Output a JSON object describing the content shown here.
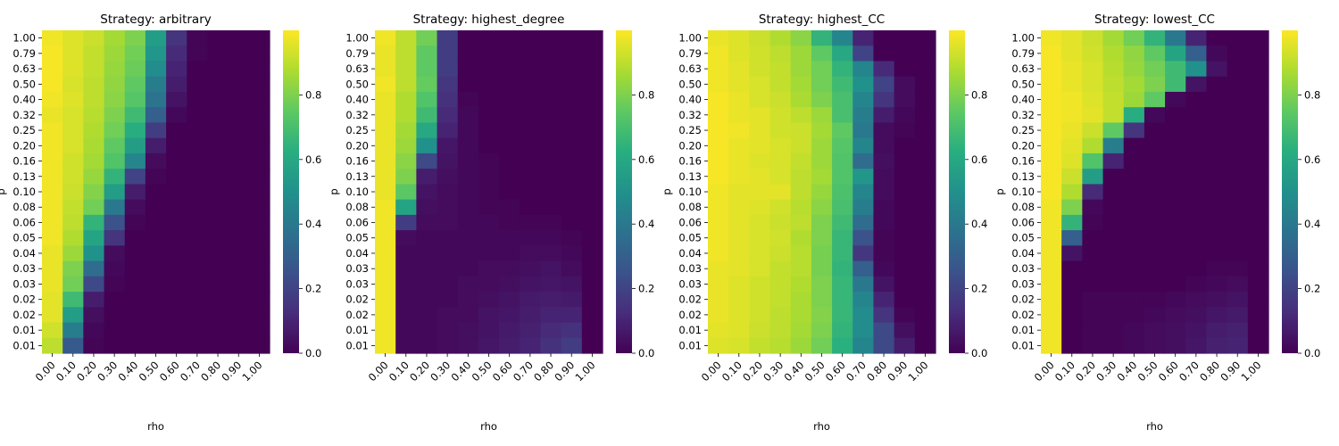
{
  "chart_data": {
    "type": "heatmap",
    "xlabel": "rho",
    "ylabel": "p",
    "x_tick_labels": [
      "0.00",
      "0.10",
      "0.20",
      "0.30",
      "0.40",
      "0.50",
      "0.60",
      "0.70",
      "0.80",
      "0.90",
      "1.00"
    ],
    "y_tick_labels": [
      "1.00",
      "0.79",
      "0.63",
      "0.50",
      "0.40",
      "0.32",
      "0.25",
      "0.20",
      "0.16",
      "0.13",
      "0.10",
      "0.08",
      "0.06",
      "0.05",
      "0.04",
      "0.03",
      "0.03",
      "0.02",
      "0.02",
      "0.01",
      "0.01"
    ],
    "colorbar": {
      "colormap": "viridis",
      "min": 0.0,
      "max": 1.0,
      "tick_values": [
        0.0,
        0.2,
        0.4,
        0.6,
        0.8
      ],
      "tick_labels": [
        "0.0",
        "0.2",
        "0.4",
        "0.6",
        "0.8"
      ]
    },
    "panels": [
      {
        "title": "Strategy: arbitrary",
        "matrix": [
          [
            0.98,
            0.95,
            0.92,
            0.86,
            0.8,
            0.55,
            0.15,
            0.01,
            0.0,
            0.0,
            0.0
          ],
          [
            0.99,
            0.95,
            0.91,
            0.85,
            0.78,
            0.52,
            0.12,
            0.01,
            0.0,
            0.0,
            0.0
          ],
          [
            0.99,
            0.95,
            0.91,
            0.84,
            0.77,
            0.48,
            0.1,
            0.0,
            0.0,
            0.0,
            0.0
          ],
          [
            0.99,
            0.94,
            0.9,
            0.83,
            0.75,
            0.42,
            0.08,
            0.0,
            0.0,
            0.0,
            0.0
          ],
          [
            0.98,
            0.95,
            0.9,
            0.82,
            0.73,
            0.38,
            0.05,
            0.0,
            0.0,
            0.0,
            0.0
          ],
          [
            0.97,
            0.94,
            0.89,
            0.8,
            0.68,
            0.3,
            0.02,
            0.0,
            0.0,
            0.0,
            0.0
          ],
          [
            0.98,
            0.94,
            0.88,
            0.78,
            0.62,
            0.18,
            0.0,
            0.0,
            0.0,
            0.0,
            0.0
          ],
          [
            0.98,
            0.94,
            0.87,
            0.75,
            0.55,
            0.08,
            0.0,
            0.0,
            0.0,
            0.0,
            0.0
          ],
          [
            0.98,
            0.93,
            0.86,
            0.72,
            0.45,
            0.03,
            0.0,
            0.0,
            0.0,
            0.0,
            0.0
          ],
          [
            0.98,
            0.93,
            0.84,
            0.65,
            0.2,
            0.01,
            0.0,
            0.0,
            0.0,
            0.0,
            0.0
          ],
          [
            0.98,
            0.92,
            0.81,
            0.55,
            0.08,
            0.0,
            0.0,
            0.0,
            0.0,
            0.0,
            0.0
          ],
          [
            0.98,
            0.91,
            0.78,
            0.4,
            0.03,
            0.0,
            0.0,
            0.0,
            0.0,
            0.0,
            0.0
          ],
          [
            0.98,
            0.9,
            0.65,
            0.25,
            0.01,
            0.0,
            0.0,
            0.0,
            0.0,
            0.0,
            0.0
          ],
          [
            0.98,
            0.88,
            0.58,
            0.15,
            0.0,
            0.0,
            0.0,
            0.0,
            0.0,
            0.0,
            0.0
          ],
          [
            0.97,
            0.85,
            0.5,
            0.03,
            0.0,
            0.0,
            0.0,
            0.0,
            0.0,
            0.0,
            0.0
          ],
          [
            0.97,
            0.8,
            0.35,
            0.02,
            0.0,
            0.0,
            0.0,
            0.0,
            0.0,
            0.0,
            0.0
          ],
          [
            0.97,
            0.78,
            0.22,
            0.01,
            0.0,
            0.0,
            0.0,
            0.0,
            0.0,
            0.0,
            0.0
          ],
          [
            0.96,
            0.68,
            0.08,
            0.0,
            0.0,
            0.0,
            0.0,
            0.0,
            0.0,
            0.0,
            0.0
          ],
          [
            0.96,
            0.55,
            0.04,
            0.0,
            0.0,
            0.0,
            0.0,
            0.0,
            0.0,
            0.0,
            0.0
          ],
          [
            0.93,
            0.42,
            0.02,
            0.0,
            0.0,
            0.0,
            0.0,
            0.0,
            0.0,
            0.0,
            0.0
          ],
          [
            0.9,
            0.28,
            0.01,
            0.0,
            0.0,
            0.0,
            0.0,
            0.0,
            0.0,
            0.0,
            0.0
          ]
        ]
      },
      {
        "title": "Strategy: highest_degree",
        "matrix": [
          [
            0.98,
            0.9,
            0.78,
            0.18,
            0.0,
            0.0,
            0.0,
            0.0,
            0.0,
            0.0,
            0.0
          ],
          [
            0.97,
            0.9,
            0.75,
            0.18,
            0.0,
            0.0,
            0.0,
            0.0,
            0.0,
            0.0,
            0.0
          ],
          [
            0.97,
            0.9,
            0.75,
            0.18,
            0.0,
            0.0,
            0.0,
            0.0,
            0.0,
            0.0,
            0.0
          ],
          [
            0.98,
            0.9,
            0.76,
            0.16,
            0.0,
            0.0,
            0.0,
            0.0,
            0.0,
            0.0,
            0.0
          ],
          [
            0.97,
            0.88,
            0.72,
            0.14,
            0.01,
            0.0,
            0.0,
            0.0,
            0.0,
            0.0,
            0.0
          ],
          [
            0.97,
            0.88,
            0.68,
            0.12,
            0.02,
            0.0,
            0.0,
            0.0,
            0.0,
            0.0,
            0.0
          ],
          [
            0.97,
            0.86,
            0.6,
            0.1,
            0.02,
            0.0,
            0.0,
            0.0,
            0.0,
            0.0,
            0.0
          ],
          [
            0.97,
            0.85,
            0.5,
            0.06,
            0.02,
            0.0,
            0.0,
            0.0,
            0.0,
            0.0,
            0.0
          ],
          [
            0.97,
            0.82,
            0.22,
            0.05,
            0.02,
            0.01,
            0.0,
            0.0,
            0.0,
            0.0,
            0.0
          ],
          [
            0.97,
            0.8,
            0.08,
            0.04,
            0.02,
            0.01,
            0.0,
            0.0,
            0.0,
            0.0,
            0.0
          ],
          [
            0.97,
            0.74,
            0.05,
            0.03,
            0.02,
            0.01,
            0.0,
            0.0,
            0.0,
            0.0,
            0.0
          ],
          [
            0.98,
            0.58,
            0.04,
            0.03,
            0.02,
            0.01,
            0.01,
            0.0,
            0.0,
            0.0,
            0.0
          ],
          [
            0.98,
            0.18,
            0.03,
            0.03,
            0.02,
            0.02,
            0.01,
            0.01,
            0.01,
            0.0,
            0.0
          ],
          [
            0.98,
            0.03,
            0.02,
            0.02,
            0.02,
            0.02,
            0.02,
            0.02,
            0.02,
            0.01,
            0.0
          ],
          [
            0.98,
            0.02,
            0.02,
            0.02,
            0.02,
            0.02,
            0.02,
            0.03,
            0.03,
            0.02,
            0.0
          ],
          [
            0.98,
            0.02,
            0.02,
            0.02,
            0.02,
            0.03,
            0.03,
            0.04,
            0.05,
            0.03,
            0.0
          ],
          [
            0.98,
            0.02,
            0.02,
            0.02,
            0.03,
            0.03,
            0.04,
            0.05,
            0.06,
            0.05,
            0.0
          ],
          [
            0.98,
            0.02,
            0.02,
            0.02,
            0.03,
            0.04,
            0.05,
            0.07,
            0.08,
            0.07,
            0.0
          ],
          [
            0.98,
            0.02,
            0.02,
            0.03,
            0.03,
            0.05,
            0.06,
            0.08,
            0.1,
            0.1,
            0.0
          ],
          [
            0.98,
            0.02,
            0.02,
            0.03,
            0.04,
            0.05,
            0.07,
            0.09,
            0.12,
            0.14,
            0.0
          ],
          [
            0.98,
            0.02,
            0.02,
            0.03,
            0.04,
            0.06,
            0.08,
            0.1,
            0.14,
            0.18,
            0.0
          ]
        ]
      },
      {
        "title": "Strategy: highest_CC",
        "matrix": [
          [
            0.97,
            0.95,
            0.92,
            0.88,
            0.82,
            0.65,
            0.45,
            0.1,
            0.0,
            0.0,
            0.0
          ],
          [
            0.98,
            0.95,
            0.93,
            0.9,
            0.85,
            0.75,
            0.6,
            0.2,
            0.0,
            0.0,
            0.0
          ],
          [
            0.98,
            0.96,
            0.93,
            0.91,
            0.85,
            0.78,
            0.65,
            0.45,
            0.12,
            0.0,
            0.0
          ],
          [
            0.98,
            0.96,
            0.94,
            0.91,
            0.86,
            0.78,
            0.68,
            0.5,
            0.2,
            0.03,
            0.0
          ],
          [
            0.99,
            0.97,
            0.94,
            0.92,
            0.87,
            0.8,
            0.7,
            0.45,
            0.15,
            0.03,
            0.0
          ],
          [
            0.99,
            0.97,
            0.96,
            0.93,
            0.9,
            0.85,
            0.7,
            0.42,
            0.08,
            0.02,
            0.0
          ],
          [
            0.99,
            0.98,
            0.96,
            0.93,
            0.92,
            0.86,
            0.75,
            0.4,
            0.03,
            0.01,
            0.0
          ],
          [
            0.99,
            0.97,
            0.96,
            0.94,
            0.92,
            0.85,
            0.73,
            0.45,
            0.03,
            0.0,
            0.0
          ],
          [
            0.99,
            0.97,
            0.95,
            0.94,
            0.91,
            0.85,
            0.72,
            0.35,
            0.04,
            0.0,
            0.0
          ],
          [
            0.99,
            0.97,
            0.96,
            0.94,
            0.9,
            0.86,
            0.72,
            0.52,
            0.03,
            0.0,
            0.0
          ],
          [
            0.98,
            0.96,
            0.96,
            0.96,
            0.9,
            0.84,
            0.71,
            0.45,
            0.03,
            0.0,
            0.0
          ],
          [
            0.98,
            0.96,
            0.95,
            0.93,
            0.89,
            0.82,
            0.7,
            0.42,
            0.02,
            0.0,
            0.0
          ],
          [
            0.98,
            0.96,
            0.94,
            0.92,
            0.9,
            0.8,
            0.68,
            0.35,
            0.02,
            0.0,
            0.0
          ],
          [
            0.98,
            0.96,
            0.94,
            0.93,
            0.88,
            0.8,
            0.66,
            0.25,
            0.01,
            0.0,
            0.0
          ],
          [
            0.98,
            0.96,
            0.94,
            0.92,
            0.89,
            0.79,
            0.66,
            0.16,
            0.01,
            0.0,
            0.0
          ],
          [
            0.97,
            0.96,
            0.94,
            0.91,
            0.89,
            0.79,
            0.65,
            0.3,
            0.02,
            0.0,
            0.0
          ],
          [
            0.97,
            0.95,
            0.93,
            0.91,
            0.88,
            0.8,
            0.66,
            0.4,
            0.05,
            0.0,
            0.0
          ],
          [
            0.97,
            0.95,
            0.93,
            0.91,
            0.87,
            0.8,
            0.66,
            0.45,
            0.1,
            0.0,
            0.0
          ],
          [
            0.97,
            0.95,
            0.93,
            0.9,
            0.87,
            0.81,
            0.66,
            0.48,
            0.15,
            0.01,
            0.0
          ],
          [
            0.96,
            0.95,
            0.92,
            0.9,
            0.86,
            0.8,
            0.65,
            0.48,
            0.22,
            0.04,
            0.0
          ],
          [
            0.95,
            0.94,
            0.91,
            0.89,
            0.85,
            0.78,
            0.63,
            0.45,
            0.22,
            0.08,
            0.0
          ]
        ]
      },
      {
        "title": "Strategy: lowest_CC",
        "matrix": [
          [
            0.98,
            0.96,
            0.92,
            0.86,
            0.78,
            0.65,
            0.4,
            0.1,
            0.0,
            0.0,
            0.0
          ],
          [
            0.99,
            0.96,
            0.93,
            0.88,
            0.83,
            0.75,
            0.58,
            0.3,
            0.02,
            0.0,
            0.0
          ],
          [
            0.99,
            0.97,
            0.94,
            0.89,
            0.84,
            0.78,
            0.68,
            0.5,
            0.05,
            0.0,
            0.0
          ],
          [
            0.99,
            0.97,
            0.94,
            0.9,
            0.86,
            0.8,
            0.68,
            0.05,
            0.0,
            0.0,
            0.0
          ],
          [
            0.99,
            0.98,
            0.95,
            0.91,
            0.85,
            0.75,
            0.02,
            0.0,
            0.0,
            0.0,
            0.0
          ],
          [
            0.99,
            0.98,
            0.96,
            0.91,
            0.62,
            0.02,
            0.0,
            0.0,
            0.0,
            0.0,
            0.0
          ],
          [
            0.99,
            0.97,
            0.92,
            0.75,
            0.15,
            0.0,
            0.0,
            0.0,
            0.0,
            0.0,
            0.0
          ],
          [
            0.99,
            0.96,
            0.88,
            0.42,
            0.0,
            0.0,
            0.0,
            0.0,
            0.0,
            0.0,
            0.0
          ],
          [
            0.99,
            0.95,
            0.72,
            0.1,
            0.0,
            0.0,
            0.0,
            0.0,
            0.0,
            0.0,
            0.0
          ],
          [
            0.99,
            0.92,
            0.55,
            0.0,
            0.0,
            0.0,
            0.0,
            0.0,
            0.0,
            0.0,
            0.0
          ],
          [
            0.99,
            0.88,
            0.12,
            0.0,
            0.0,
            0.0,
            0.0,
            0.0,
            0.0,
            0.0,
            0.0
          ],
          [
            0.98,
            0.8,
            0.02,
            0.0,
            0.0,
            0.0,
            0.0,
            0.0,
            0.0,
            0.0,
            0.0
          ],
          [
            0.98,
            0.65,
            0.01,
            0.0,
            0.0,
            0.0,
            0.0,
            0.0,
            0.0,
            0.0,
            0.0
          ],
          [
            0.98,
            0.3,
            0.0,
            0.0,
            0.0,
            0.0,
            0.0,
            0.0,
            0.0,
            0.0,
            0.0
          ],
          [
            0.98,
            0.05,
            0.0,
            0.0,
            0.0,
            0.0,
            0.0,
            0.0,
            0.0,
            0.0,
            0.0
          ],
          [
            0.98,
            0.0,
            0.0,
            0.0,
            0.0,
            0.0,
            0.0,
            0.0,
            0.01,
            0.01,
            0.0
          ],
          [
            0.98,
            0.0,
            0.0,
            0.0,
            0.0,
            0.0,
            0.0,
            0.01,
            0.02,
            0.03,
            0.0
          ],
          [
            0.98,
            0.0,
            0.01,
            0.01,
            0.01,
            0.01,
            0.02,
            0.03,
            0.04,
            0.05,
            0.0
          ],
          [
            0.98,
            0.0,
            0.01,
            0.01,
            0.01,
            0.02,
            0.03,
            0.04,
            0.06,
            0.07,
            0.0
          ],
          [
            0.98,
            0.0,
            0.01,
            0.01,
            0.02,
            0.03,
            0.04,
            0.05,
            0.08,
            0.09,
            0.0
          ],
          [
            0.98,
            0.0,
            0.01,
            0.01,
            0.02,
            0.03,
            0.04,
            0.06,
            0.09,
            0.1,
            0.0
          ]
        ]
      }
    ]
  }
}
